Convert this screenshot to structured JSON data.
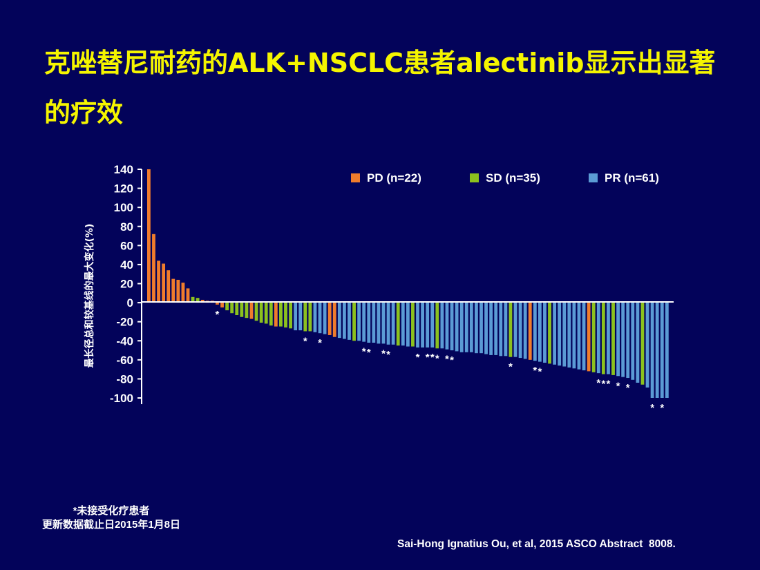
{
  "slide": {
    "title": "克唑替尼耐药的ALK+NSCLC患者alectinib显示出显著的疗效",
    "footnote_line1": "*未接受化疗患者",
    "footnote_line2": "更新数据截止日2015年1月8日",
    "citation": "Sai-Hong Ignatius Ou, et al, 2015 ASCO Abstract  8008."
  },
  "chart_data": {
    "type": "bar",
    "title": "",
    "xlabel": "",
    "ylabel": "最长径总和较基线的最大变化(%)",
    "ylim": [
      -100,
      140
    ],
    "yticks": [
      "140",
      "120",
      "100",
      "80",
      "60",
      "40",
      "20",
      "0",
      "-20",
      "-40",
      "-60",
      "-80",
      "-100"
    ],
    "legend_position": "top-right",
    "colors": {
      "PD": "#f07c2c",
      "SD": "#8cc11e",
      "PR": "#5b9bd5"
    },
    "legend": [
      {
        "key": "PD",
        "label": "PD (n=22)"
      },
      {
        "key": "SD",
        "label": "SD (n=35)"
      },
      {
        "key": "PR",
        "label": "PR (n=61)"
      }
    ],
    "annotation_symbol": "*",
    "bars": [
      {
        "v": 140,
        "c": "PD"
      },
      {
        "v": 72,
        "c": "PD"
      },
      {
        "v": 44,
        "c": "PD"
      },
      {
        "v": 41,
        "c": "PD"
      },
      {
        "v": 34,
        "c": "PD"
      },
      {
        "v": 25,
        "c": "PD"
      },
      {
        "v": 24,
        "c": "PD"
      },
      {
        "v": 21,
        "c": "PD"
      },
      {
        "v": 15,
        "c": "PD"
      },
      {
        "v": 6,
        "c": "SD"
      },
      {
        "v": 5,
        "c": "SD"
      },
      {
        "v": 3,
        "c": "PD"
      },
      {
        "v": 2,
        "c": "PD"
      },
      {
        "v": 2,
        "c": "PD"
      },
      {
        "v": -2,
        "c": "PD",
        "s": "*"
      },
      {
        "v": -5,
        "c": "PD"
      },
      {
        "v": -8,
        "c": "SD"
      },
      {
        "v": -11,
        "c": "SD"
      },
      {
        "v": -13,
        "c": "SD"
      },
      {
        "v": -15,
        "c": "SD"
      },
      {
        "v": -16,
        "c": "SD"
      },
      {
        "v": -17,
        "c": "PD"
      },
      {
        "v": -19,
        "c": "SD"
      },
      {
        "v": -21,
        "c": "SD"
      },
      {
        "v": -22,
        "c": "SD"
      },
      {
        "v": -24,
        "c": "SD"
      },
      {
        "v": -25,
        "c": "PD"
      },
      {
        "v": -25,
        "c": "SD"
      },
      {
        "v": -26,
        "c": "SD"
      },
      {
        "v": -27,
        "c": "SD"
      },
      {
        "v": -29,
        "c": "PR"
      },
      {
        "v": -29,
        "c": "PR"
      },
      {
        "v": -30,
        "c": "SD",
        "s": "*"
      },
      {
        "v": -30,
        "c": "SD"
      },
      {
        "v": -31,
        "c": "PR"
      },
      {
        "v": -32,
        "c": "PR",
        "s": "*"
      },
      {
        "v": -33,
        "c": "PR"
      },
      {
        "v": -34,
        "c": "PD"
      },
      {
        "v": -36,
        "c": "PD"
      },
      {
        "v": -37,
        "c": "PR"
      },
      {
        "v": -38,
        "c": "PR"
      },
      {
        "v": -39,
        "c": "PR"
      },
      {
        "v": -40,
        "c": "SD"
      },
      {
        "v": -40,
        "c": "PR"
      },
      {
        "v": -41,
        "c": "PR",
        "s": "*"
      },
      {
        "v": -42,
        "c": "PR",
        "s": "*"
      },
      {
        "v": -42,
        "c": "PR"
      },
      {
        "v": -43,
        "c": "PR"
      },
      {
        "v": -43,
        "c": "PR",
        "s": "*"
      },
      {
        "v": -44,
        "c": "PR",
        "s": "*"
      },
      {
        "v": -44,
        "c": "PR"
      },
      {
        "v": -45,
        "c": "SD"
      },
      {
        "v": -45,
        "c": "PR"
      },
      {
        "v": -46,
        "c": "PR"
      },
      {
        "v": -46,
        "c": "SD"
      },
      {
        "v": -47,
        "c": "PR",
        "s": "*"
      },
      {
        "v": -47,
        "c": "PR"
      },
      {
        "v": -47,
        "c": "PR",
        "s": "*"
      },
      {
        "v": -47,
        "c": "PR",
        "s": "*"
      },
      {
        "v": -48,
        "c": "SD",
        "s": "*"
      },
      {
        "v": -48,
        "c": "PR"
      },
      {
        "v": -49,
        "c": "PR",
        "s": "*"
      },
      {
        "v": -50,
        "c": "PR",
        "s": "*"
      },
      {
        "v": -51,
        "c": "PR"
      },
      {
        "v": -52,
        "c": "PR"
      },
      {
        "v": -52,
        "c": "PR"
      },
      {
        "v": -52,
        "c": "PR"
      },
      {
        "v": -53,
        "c": "PR"
      },
      {
        "v": -53,
        "c": "PR"
      },
      {
        "v": -54,
        "c": "PR"
      },
      {
        "v": -55,
        "c": "PR"
      },
      {
        "v": -55,
        "c": "PR"
      },
      {
        "v": -56,
        "c": "PR"
      },
      {
        "v": -56,
        "c": "PR"
      },
      {
        "v": -57,
        "c": "SD",
        "s": "*"
      },
      {
        "v": -57,
        "c": "PR"
      },
      {
        "v": -58,
        "c": "PR"
      },
      {
        "v": -59,
        "c": "PR"
      },
      {
        "v": -60,
        "c": "PD"
      },
      {
        "v": -61,
        "c": "PR",
        "s": "*"
      },
      {
        "v": -62,
        "c": "PR",
        "s": "*"
      },
      {
        "v": -63,
        "c": "PR"
      },
      {
        "v": -64,
        "c": "SD"
      },
      {
        "v": -65,
        "c": "PR"
      },
      {
        "v": -66,
        "c": "PR"
      },
      {
        "v": -67,
        "c": "PR"
      },
      {
        "v": -68,
        "c": "PR"
      },
      {
        "v": -69,
        "c": "PR"
      },
      {
        "v": -70,
        "c": "PR"
      },
      {
        "v": -71,
        "c": "PR"
      },
      {
        "v": -72,
        "c": "PD"
      },
      {
        "v": -73,
        "c": "SD"
      },
      {
        "v": -74,
        "c": "PR",
        "s": "*"
      },
      {
        "v": -75,
        "c": "SD",
        "s": "*"
      },
      {
        "v": -75,
        "c": "PR",
        "s": "*"
      },
      {
        "v": -76,
        "c": "SD"
      },
      {
        "v": -77,
        "c": "PR",
        "s": "*"
      },
      {
        "v": -78,
        "c": "PR"
      },
      {
        "v": -79,
        "c": "PR",
        "s": "*"
      },
      {
        "v": -81,
        "c": "PR"
      },
      {
        "v": -84,
        "c": "PR"
      },
      {
        "v": -86,
        "c": "SD"
      },
      {
        "v": -89,
        "c": "PR"
      },
      {
        "v": -100,
        "c": "PR",
        "s": "*"
      },
      {
        "v": -100,
        "c": "PR"
      },
      {
        "v": -100,
        "c": "PR",
        "s": "*"
      },
      {
        "v": -100,
        "c": "PR"
      }
    ]
  }
}
